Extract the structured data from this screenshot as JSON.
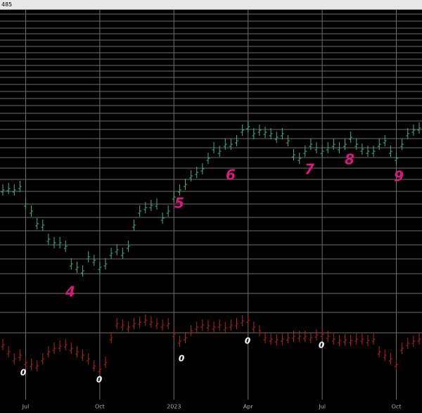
{
  "window_title": "485",
  "chart_data": {
    "type": "ohlc",
    "categories": [
      null,
      null,
      null,
      null,
      "Jul",
      null,
      null,
      null,
      null,
      null,
      null,
      null,
      null,
      null,
      null,
      null,
      null,
      "Oct",
      null,
      null,
      null,
      null,
      null,
      null,
      null,
      null,
      null,
      null,
      null,
      null,
      "2023",
      null,
      null,
      null,
      null,
      null,
      null,
      null,
      null,
      null,
      null,
      null,
      null,
      "Apr",
      null,
      null,
      null,
      null,
      null,
      null,
      null,
      null,
      null,
      null,
      null,
      null,
      "Jul",
      null,
      null,
      null,
      null,
      null,
      null,
      null,
      null,
      null,
      null,
      null,
      null,
      "Oct",
      null,
      null,
      null,
      null
    ],
    "ylim": [
      0,
      554
    ],
    "yticks": [
      548,
      538,
      528,
      520,
      511,
      502,
      493,
      484,
      475,
      467,
      458,
      448,
      438,
      428,
      418,
      407,
      396,
      384,
      371,
      358,
      344,
      329,
      313,
      296,
      278,
      259,
      240,
      220,
      200,
      179,
      151,
      124,
      95
    ],
    "grid": true,
    "series": [
      {
        "color": "#3fae8c",
        "values": [
          298,
          300,
          298,
          303,
          278,
          268,
          250,
          248,
          228,
          223,
          223,
          218,
          193,
          188,
          183,
          203,
          198,
          188,
          193,
          208,
          213,
          208,
          218,
          248,
          268,
          273,
          276,
          278,
          258,
          268,
          288,
          298,
          306,
          318,
          323,
          328,
          343,
          358,
          353,
          363,
          363,
          368,
          383,
          388,
          378,
          383,
          380,
          378,
          373,
          378,
          368,
          348,
          343,
          353,
          363,
          358,
          353,
          358,
          363,
          358,
          363,
          373,
          363,
          356,
          353,
          353,
          363,
          368,
          353,
          343,
          363,
          378,
          383,
          386
        ]
      },
      {
        "color": "#b3261e",
        "values": [
          78,
          68,
          58,
          63,
          53,
          50,
          48,
          58,
          68,
          73,
          76,
          78,
          73,
          68,
          63,
          58,
          48,
          43,
          53,
          88,
          108,
          106,
          103,
          108,
          110,
          113,
          110,
          108,
          106,
          108,
          93,
          83,
          88,
          98,
          103,
          106,
          105,
          103,
          106,
          102,
          106,
          108,
          112,
          113,
          103,
          98,
          88,
          86,
          85,
          86,
          88,
          90,
          90,
          90,
          88,
          92,
          93,
          90,
          86,
          84,
          85,
          84,
          86,
          86,
          84,
          86,
          68,
          63,
          58,
          50,
          73,
          80,
          83,
          86
        ]
      }
    ],
    "annotations": [
      {
        "text": "4",
        "color": "#d81b7a"
      },
      {
        "text": "5",
        "color": "#d81b7a"
      },
      {
        "text": "6",
        "color": "#d81b7a"
      },
      {
        "text": "7",
        "color": "#d81b7a"
      },
      {
        "text": "8",
        "color": "#d81b7a"
      },
      {
        "text": "9",
        "color": "#d81b7a"
      },
      {
        "text": "0",
        "color": "#ffffff"
      },
      {
        "text": "0",
        "color": "#ffffff"
      },
      {
        "text": "0",
        "color": "#ffffff"
      },
      {
        "text": "0",
        "color": "#ffffff"
      },
      {
        "text": "0",
        "color": "#ffffff"
      }
    ]
  }
}
